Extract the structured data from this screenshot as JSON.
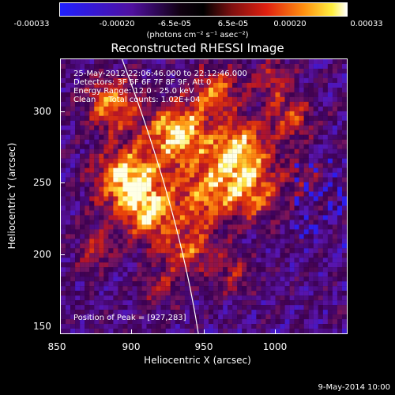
{
  "colorbar": {
    "ticks": [
      "-0.00033",
      "-0.00020",
      "-6.5e-05",
      "6.5e-05",
      "0.00020",
      "0.00033"
    ],
    "units_text": "(photons cm",
    "units_full": "(photons cm⁻² s⁻¹ asec⁻²)"
  },
  "title": "Reconstructed RHESSI Image",
  "info": {
    "line1": "25-May-2012 22:06:46.000 to 22:12:46.000",
    "line2": "Detectors: 3F 5F 6F 7F 8F 9F, Att 0",
    "line3": "Energy Range: 12.0 - 25.0 keV",
    "line4": "Clean     Total counts: 1.02E+04",
    "peak": "Position of Peak = [927,283]"
  },
  "axes": {
    "xlabel": "Heliocentric X (arcsec)",
    "ylabel": "Heliocentric Y (arcsec)",
    "xticks": [
      "850",
      "900",
      "950",
      "1000"
    ],
    "yticks": [
      "300",
      "250",
      "200",
      "150"
    ]
  },
  "footer_date": "9-May-2014 10:00",
  "colors": {
    "background": "#000000",
    "neg": "#1010ff",
    "zero": "#000000",
    "mid": "#d02010",
    "pos": "#ffffff"
  }
}
